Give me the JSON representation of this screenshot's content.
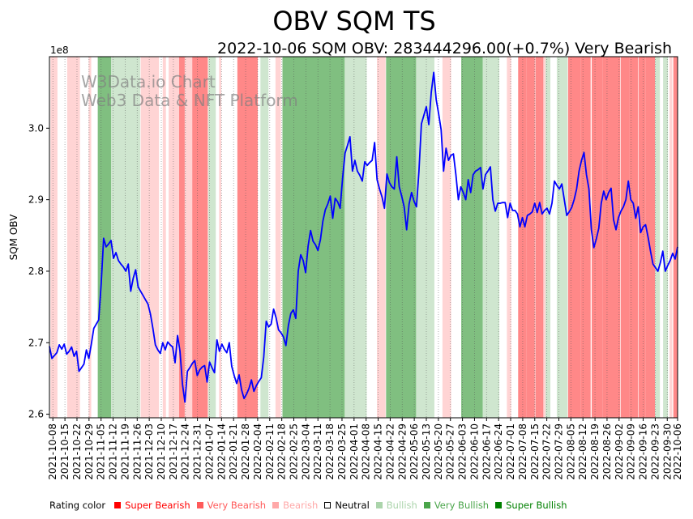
{
  "chart_data": {
    "type": "line",
    "title": "OBV SQM TS",
    "subtitle": "2022-10-06 SQM OBV: 283444296.00(+0.7%) Very Bearish",
    "ylabel": "SQM OBV",
    "y_multiplier_label": "1e8",
    "ylim": [
      2.595,
      3.1
    ],
    "yticks": [
      {
        "value": 2.6,
        "label": "2.6"
      },
      {
        "value": 2.7,
        "label": "2.7"
      },
      {
        "value": 2.8,
        "label": "2.8"
      },
      {
        "value": 2.9,
        "label": "2.9"
      },
      {
        "value": 3.0,
        "label": "3.0"
      }
    ],
    "x_start": "2021-10-06",
    "x_end": "2022-10-06",
    "xticks": [
      "2021-10-08",
      "2021-10-15",
      "2021-10-22",
      "2021-10-29",
      "2021-11-05",
      "2021-11-12",
      "2021-11-19",
      "2021-11-26",
      "2021-12-03",
      "2021-12-10",
      "2021-12-17",
      "2021-12-24",
      "2021-12-31",
      "2022-01-07",
      "2022-01-14",
      "2022-01-21",
      "2022-01-28",
      "2022-02-04",
      "2022-02-11",
      "2022-02-18",
      "2022-02-25",
      "2022-03-04",
      "2022-03-11",
      "2022-03-18",
      "2022-03-25",
      "2022-04-01",
      "2022-04-08",
      "2022-04-15",
      "2022-04-22",
      "2022-04-29",
      "2022-05-06",
      "2022-05-13",
      "2022-05-20",
      "2022-05-27",
      "2022-06-03",
      "2022-06-10",
      "2022-06-17",
      "2022-06-24",
      "2022-07-01",
      "2022-07-08",
      "2022-07-15",
      "2022-07-22",
      "2022-07-29",
      "2022-08-05",
      "2022-08-12",
      "2022-08-19",
      "2022-08-26",
      "2022-09-02",
      "2022-09-09",
      "2022-09-16",
      "2022-09-23",
      "2022-09-30",
      "2022-10-06"
    ],
    "series": [
      {
        "name": "SQM OBV",
        "color": "#0000ff",
        "values": [
          2.695,
          2.678,
          2.682,
          2.686,
          2.697,
          2.691,
          2.698,
          2.684,
          2.688,
          2.694,
          2.681,
          2.688,
          2.66,
          2.665,
          2.67,
          2.69,
          2.678,
          2.698,
          2.72,
          2.726,
          2.732,
          2.782,
          2.846,
          2.834,
          2.838,
          2.843,
          2.818,
          2.826,
          2.815,
          2.81,
          2.806,
          2.8,
          2.81,
          2.772,
          2.79,
          2.802,
          2.778,
          2.772,
          2.766,
          2.76,
          2.754,
          2.74,
          2.72,
          2.697,
          2.69,
          2.685,
          2.7,
          2.69,
          2.701,
          2.697,
          2.694,
          2.672,
          2.71,
          2.688,
          2.642,
          2.617,
          2.66,
          2.665,
          2.671,
          2.675,
          2.654,
          2.662,
          2.666,
          2.668,
          2.645,
          2.673,
          2.665,
          2.658,
          2.704,
          2.688,
          2.698,
          2.691,
          2.686,
          2.7,
          2.667,
          2.654,
          2.643,
          2.655,
          2.634,
          2.622,
          2.628,
          2.636,
          2.648,
          2.632,
          2.64,
          2.646,
          2.651,
          2.68,
          2.73,
          2.722,
          2.726,
          2.747,
          2.735,
          2.718,
          2.714,
          2.708,
          2.696,
          2.724,
          2.741,
          2.746,
          2.734,
          2.8,
          2.823,
          2.815,
          2.798,
          2.835,
          2.857,
          2.842,
          2.837,
          2.829,
          2.844,
          2.87,
          2.886,
          2.894,
          2.905,
          2.874,
          2.902,
          2.897,
          2.888,
          2.93,
          2.965,
          2.976,
          2.988,
          2.94,
          2.955,
          2.94,
          2.934,
          2.926,
          2.953,
          2.948,
          2.952,
          2.955,
          2.98,
          2.928,
          2.915,
          2.904,
          2.888,
          2.936,
          2.924,
          2.918,
          2.915,
          2.96,
          2.918,
          2.905,
          2.89,
          2.858,
          2.894,
          2.91,
          2.898,
          2.89,
          2.94,
          3.006,
          3.018,
          3.03,
          3.005,
          3.05,
          3.078,
          3.04,
          3.02,
          2.998,
          2.94,
          2.972,
          2.955,
          2.962,
          2.964,
          2.935,
          2.9,
          2.918,
          2.91,
          2.9,
          2.928,
          2.91,
          2.935,
          2.94,
          2.942,
          2.945,
          2.915,
          2.935,
          2.94,
          2.946,
          2.9,
          2.884,
          2.895,
          2.895,
          2.896,
          2.896,
          2.875,
          2.895,
          2.885,
          2.885,
          2.88,
          2.862,
          2.875,
          2.862,
          2.878,
          2.88,
          2.883,
          2.895,
          2.882,
          2.896,
          2.88,
          2.885,
          2.888,
          2.88,
          2.895,
          2.926,
          2.92,
          2.915,
          2.922,
          2.9,
          2.878,
          2.883,
          2.889,
          2.9,
          2.915,
          2.94,
          2.955,
          2.966,
          2.935,
          2.915,
          2.858,
          2.833,
          2.845,
          2.86,
          2.895,
          2.912,
          2.9,
          2.91,
          2.916,
          2.872,
          2.858,
          2.875,
          2.884,
          2.89,
          2.9,
          2.926,
          2.9,
          2.895,
          2.874,
          2.89,
          2.854,
          2.862,
          2.865,
          2.848,
          2.828,
          2.81,
          2.805,
          2.8,
          2.812,
          2.828,
          2.8,
          2.808,
          2.815,
          2.825,
          2.817,
          2.834
        ]
      }
    ],
    "bands": [
      {
        "start": 0.2,
        "end": 1.5,
        "rating": "bearish"
      },
      {
        "start": 1.5,
        "end": 2.2,
        "rating": "neutral"
      },
      {
        "start": 3.3,
        "end": 5.7,
        "rating": "bearish"
      },
      {
        "start": 5.7,
        "end": 6.4,
        "rating": "neutral"
      },
      {
        "start": 7.3,
        "end": 7.8,
        "rating": "bearish"
      },
      {
        "start": 7.8,
        "end": 8.9,
        "rating": "neutral"
      },
      {
        "start": 9.0,
        "end": 11.5,
        "rating": "very_bullish"
      },
      {
        "start": 11.5,
        "end": 16.9,
        "rating": "bullish"
      },
      {
        "start": 17.0,
        "end": 20.4,
        "rating": "bearish"
      },
      {
        "start": 21.1,
        "end": 21.7,
        "rating": "bearish"
      },
      {
        "start": 22.2,
        "end": 24.0,
        "rating": "bearish"
      },
      {
        "start": 24.1,
        "end": 25.2,
        "rating": "very_bearish"
      },
      {
        "start": 25.2,
        "end": 26.6,
        "rating": "bearish"
      },
      {
        "start": 26.6,
        "end": 29.5,
        "rating": "very_bearish"
      },
      {
        "start": 29.6,
        "end": 31.0,
        "rating": "bullish"
      },
      {
        "start": 31.0,
        "end": 31.4,
        "rating": "neutral"
      },
      {
        "start": 31.6,
        "end": 32.0,
        "rating": "bearish"
      },
      {
        "start": 32.9,
        "end": 34.0,
        "rating": "neutral"
      },
      {
        "start": 35.0,
        "end": 38.8,
        "rating": "very_bearish"
      },
      {
        "start": 39.3,
        "end": 40.8,
        "rating": "bullish"
      },
      {
        "start": 42.1,
        "end": 43.1,
        "rating": "bearish"
      },
      {
        "start": 43.4,
        "end": 55.0,
        "rating": "very_bullish"
      },
      {
        "start": 55.0,
        "end": 59.1,
        "rating": "bullish"
      },
      {
        "start": 59.3,
        "end": 61.0,
        "rating": "neutral"
      },
      {
        "start": 61.0,
        "end": 62.6,
        "rating": "bearish"
      },
      {
        "start": 62.7,
        "end": 68.3,
        "rating": "very_bullish"
      },
      {
        "start": 68.3,
        "end": 71.7,
        "rating": "bullish"
      },
      {
        "start": 73.2,
        "end": 74.8,
        "rating": "bearish"
      },
      {
        "start": 76.7,
        "end": 80.7,
        "rating": "very_bullish"
      },
      {
        "start": 80.7,
        "end": 83.8,
        "rating": "bullish"
      },
      {
        "start": 83.8,
        "end": 85.2,
        "rating": "neutral"
      },
      {
        "start": 85.2,
        "end": 86.0,
        "rating": "bearish"
      },
      {
        "start": 87.3,
        "end": 88.8,
        "rating": "very_bearish"
      },
      {
        "start": 88.8,
        "end": 90.4,
        "rating": "very_bearish"
      },
      {
        "start": 90.5,
        "end": 91.5,
        "rating": "very_bearish"
      },
      {
        "start": 91.5,
        "end": 92.0,
        "rating": "very_bearish"
      },
      {
        "start": 92.0,
        "end": 92.4,
        "rating": "bearish"
      },
      {
        "start": 92.4,
        "end": 93.3,
        "rating": "bullish"
      },
      {
        "start": 94.5,
        "end": 96.5,
        "rating": "bullish"
      },
      {
        "start": 96.6,
        "end": 99.0,
        "rating": "very_bearish"
      },
      {
        "start": 99.0,
        "end": 100.8,
        "rating": "very_bearish"
      },
      {
        "start": 101.0,
        "end": 103.0,
        "rating": "very_bearish"
      },
      {
        "start": 103.0,
        "end": 106.3,
        "rating": "very_bearish"
      },
      {
        "start": 106.4,
        "end": 108.0,
        "rating": "very_bearish"
      },
      {
        "start": 108.0,
        "end": 109.6,
        "rating": "very_bearish"
      },
      {
        "start": 109.7,
        "end": 111.0,
        "rating": "very_bearish"
      },
      {
        "start": 111.0,
        "end": 112.8,
        "rating": "very_bearish"
      },
      {
        "start": 112.8,
        "end": 113.7,
        "rating": "bullish"
      },
      {
        "start": 114.3,
        "end": 115.2,
        "rating": "bullish"
      },
      {
        "start": 115.5,
        "end": 116.0,
        "rating": "bearish"
      },
      {
        "start": 116.2,
        "end": 117.0,
        "rating": "very_bearish"
      }
    ],
    "legend": {
      "title": "Rating color",
      "placement": "bottom-left",
      "items": [
        {
          "label": "Super Bearish",
          "color": "#ff0000",
          "text_color": "#ff0000"
        },
        {
          "label": "Very Bearish",
          "color": "#ff5a5a",
          "text_color": "#ff5a5a"
        },
        {
          "label": "Bearish",
          "color": "#ffa8a8",
          "text_color": "#ffa8a8"
        },
        {
          "label": "Neutral",
          "color": "#ffffff",
          "text_color": "#000000"
        },
        {
          "label": "Bullish",
          "color": "#abd4ab",
          "text_color": "#abd4ab"
        },
        {
          "label": "Very Bullish",
          "color": "#4aa54a",
          "text_color": "#4aa54a"
        },
        {
          "label": "Super Bullish",
          "color": "#008000",
          "text_color": "#008000"
        }
      ]
    },
    "band_colors": {
      "bearish": "#ffd4d4",
      "very_bearish": "#ff8888",
      "neutral": "#ffffff",
      "bullish": "#cfe6cf",
      "very_bullish": "#80bf80"
    },
    "annotations": [
      "W3Data.io Chart",
      "Web3 Data & NFT Platform"
    ]
  }
}
